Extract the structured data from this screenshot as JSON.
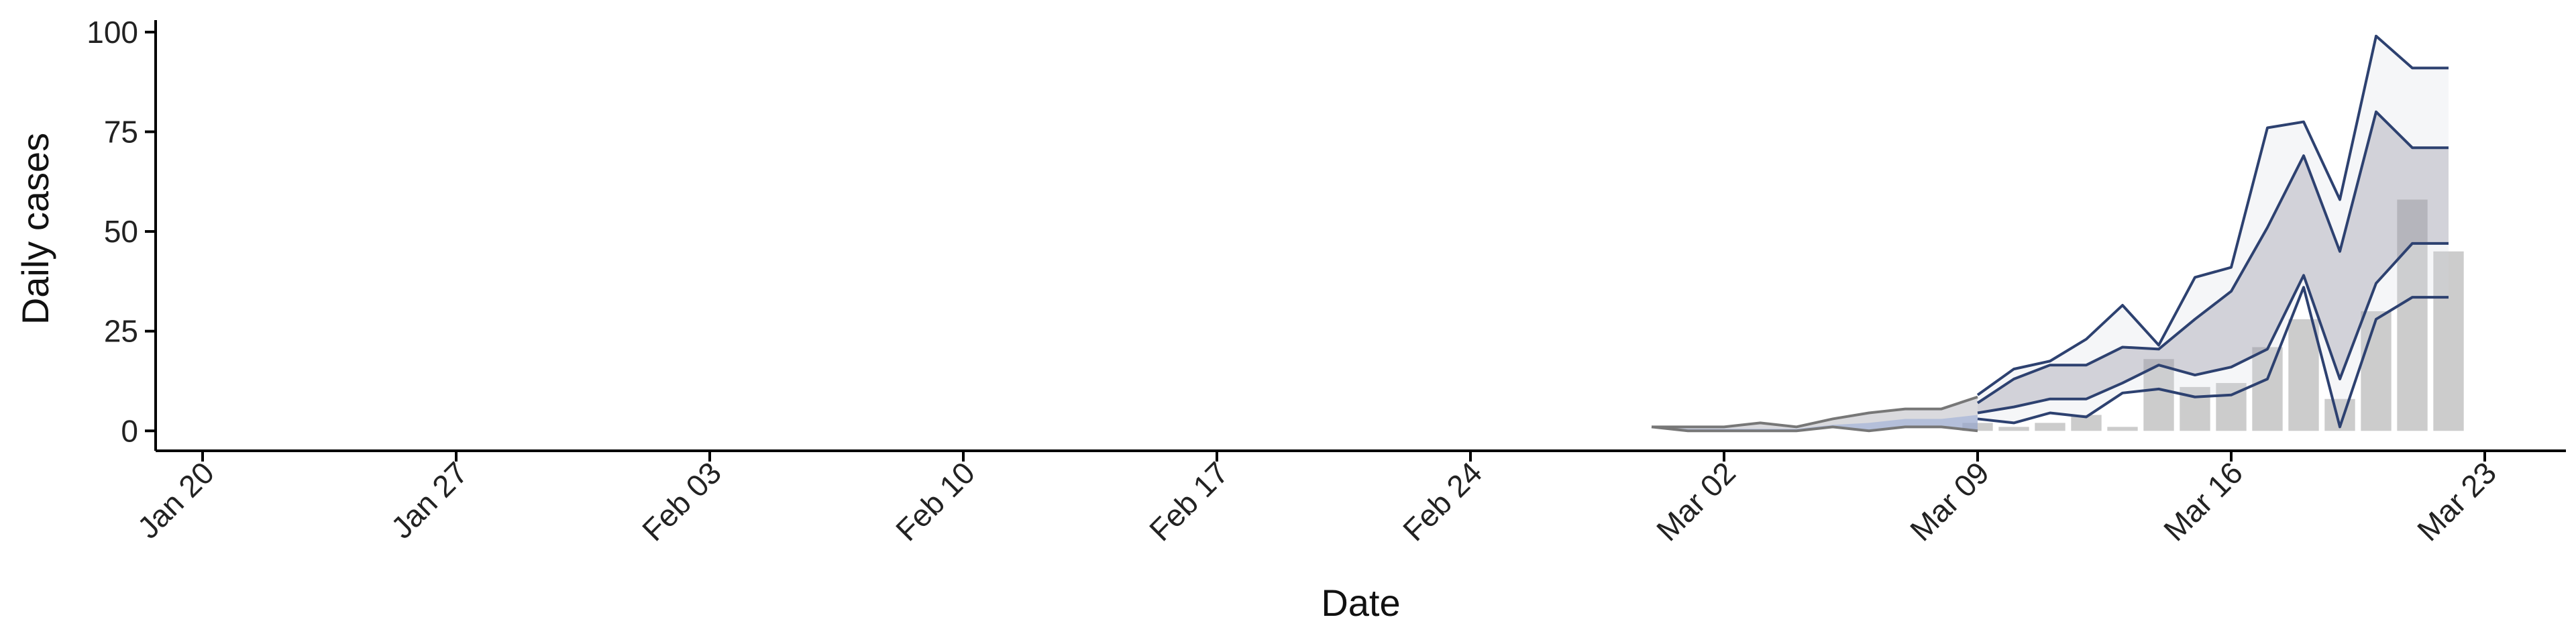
{
  "chart_data": {
    "type": "line",
    "xlabel": "Date",
    "ylabel": "Daily cases",
    "x_ticks": [
      "Jan 20",
      "Jan 27",
      "Feb 03",
      "Feb 10",
      "Feb 17",
      "Feb 24",
      "Mar 02",
      "Mar 09",
      "Mar 16",
      "Mar 23"
    ],
    "y_ticks": [
      0,
      25,
      50,
      75,
      100
    ],
    "xlim": [
      "2020-01-20",
      "2020-03-23"
    ],
    "ylim": [
      -5,
      103
    ],
    "grid": false,
    "legend": "none",
    "series": [
      {
        "type": "bar",
        "x": [
          "2020-03-09",
          "2020-03-10",
          "2020-03-11",
          "2020-03-12",
          "2020-03-13",
          "2020-03-14",
          "2020-03-15",
          "2020-03-16",
          "2020-03-17",
          "2020-03-18",
          "2020-03-19",
          "2020-03-20",
          "2020-03-21",
          "2020-03-22"
        ],
        "values": [
          2,
          1,
          2,
          4,
          1,
          18,
          11,
          12,
          21,
          28,
          8,
          30,
          58,
          45
        ]
      },
      {
        "type": "band",
        "x": [
          "2020-02-29",
          "2020-03-01",
          "2020-03-02",
          "2020-03-03",
          "2020-03-04",
          "2020-03-05",
          "2020-03-06",
          "2020-03-07",
          "2020-03-08",
          "2020-03-09"
        ],
        "lower": [
          1,
          0,
          0,
          0,
          0,
          1,
          0,
          1,
          1,
          0
        ],
        "upper": [
          1,
          1,
          1,
          2,
          1,
          3,
          4.5,
          5.5,
          5.5,
          8.5
        ],
        "median": [
          1,
          0.5,
          0.5,
          0.5,
          0.5,
          1.5,
          2,
          3,
          3,
          4
        ]
      },
      {
        "type": "band",
        "x": [
          "2020-03-09",
          "2020-03-10",
          "2020-03-11",
          "2020-03-12",
          "2020-03-13",
          "2020-03-14",
          "2020-03-15",
          "2020-03-16",
          "2020-03-17",
          "2020-03-18",
          "2020-03-19",
          "2020-03-20",
          "2020-03-21",
          "2020-03-22"
        ],
        "lower": [
          3,
          2,
          4.5,
          3.5,
          9.5,
          10.5,
          8.5,
          9,
          13,
          36,
          1,
          28,
          33.5,
          33.5
        ],
        "upper": [
          9,
          15.5,
          17.5,
          23,
          31.5,
          21.5,
          38.5,
          41,
          76,
          77.5,
          58,
          99,
          91,
          91
        ],
        "inner_lower": [
          4.5,
          6,
          8,
          8,
          12,
          16.5,
          14,
          16,
          20.5,
          39,
          13,
          37,
          47,
          47
        ],
        "inner_upper": [
          7,
          13,
          16.5,
          16.5,
          21,
          20.5,
          28,
          35,
          51,
          69,
          45,
          80,
          71,
          71
        ]
      }
    ]
  }
}
